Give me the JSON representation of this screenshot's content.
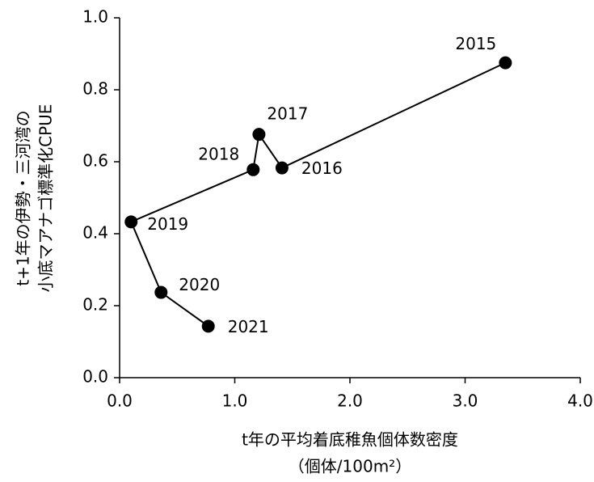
{
  "chart_data": {
    "type": "scatter",
    "y_label_lines": [
      "t+1年の伊勢・三河湾の",
      "小底マアナゴ標準化CPUE"
    ],
    "x_label_lines": [
      "t年の平均着底稚魚個体数密度",
      "（個体/100m²）"
    ],
    "labels": [
      "2015",
      "2016",
      "2017",
      "2018",
      "2019",
      "2020",
      "2021"
    ],
    "x": [
      3.35,
      1.41,
      1.21,
      1.16,
      0.1,
      0.36,
      0.77
    ],
    "y": [
      0.875,
      0.583,
      0.676,
      0.578,
      0.433,
      0.237,
      0.143
    ],
    "color": "#000000",
    "connected": true,
    "xlim": [
      0,
      4
    ],
    "xticks": [
      {
        "value": 0,
        "label": "0.0"
      },
      {
        "value": 1,
        "label": "1.0"
      },
      {
        "value": 2,
        "label": "2.0"
      },
      {
        "value": 3,
        "label": "3.0"
      },
      {
        "value": 4,
        "label": "4.0"
      }
    ],
    "ylim": [
      0,
      1
    ],
    "yticks": [
      {
        "value": 0,
        "label": "0.0"
      },
      0.2,
      0.4,
      0.6,
      0.8,
      {
        "value": 1,
        "label": "1.0"
      }
    ],
    "grid": false
  }
}
